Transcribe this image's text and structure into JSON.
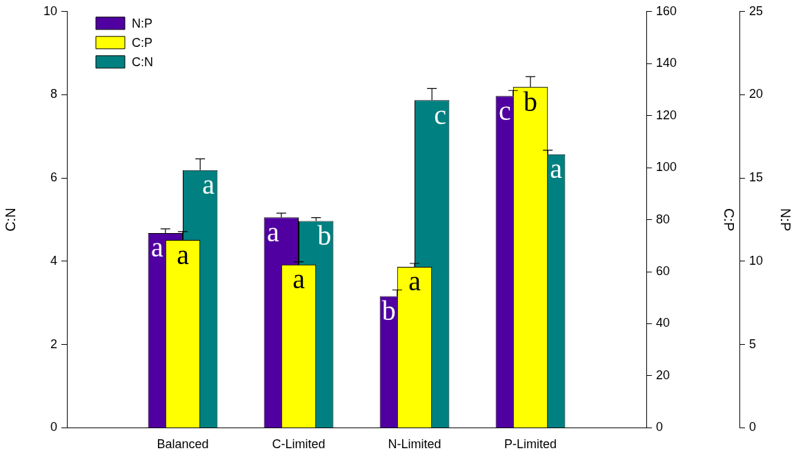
{
  "chart_data": {
    "type": "bar",
    "ylabel": "C:N",
    "y2label": "C:P",
    "y3label": "N:P",
    "categories": [
      "Balanced",
      "C-Limited",
      "N-Limited",
      "P-Limited"
    ],
    "ylim": [
      0,
      10
    ],
    "yticks": [
      0,
      2,
      4,
      6,
      8,
      10
    ],
    "y2lim": [
      0,
      160
    ],
    "y2ticks": [
      0,
      20,
      40,
      60,
      80,
      100,
      120,
      140,
      160
    ],
    "y3lim": [
      0,
      25
    ],
    "y3ticks": [
      0,
      5,
      10,
      15,
      20,
      25
    ],
    "legend": "top left",
    "grid": false,
    "series": [
      {
        "name": "N:P",
        "color": "#5000a0",
        "axis": "y3",
        "values": [
          11.7,
          12.64,
          7.91,
          19.93
        ],
        "errors": [
          0.25,
          0.25,
          0.37,
          0.33
        ],
        "value_labels": [
          "a",
          "a",
          "b",
          "c"
        ]
      },
      {
        "name": "C:P",
        "color": "#ffff00",
        "axis": "y2",
        "values": [
          72.2,
          62.7,
          61.9,
          131
        ],
        "errors": [
          3.2,
          1.1,
          1.3,
          4
        ],
        "value_labels": [
          "a",
          "a",
          "a",
          "b"
        ]
      },
      {
        "name": "C:N",
        "color": "#008080",
        "values": [
          6.19,
          4.97,
          7.87,
          6.57
        ],
        "errors": [
          0.27,
          0.08,
          0.28,
          0.1
        ],
        "value_labels": [
          "a",
          "b",
          "c",
          "a"
        ]
      }
    ]
  }
}
